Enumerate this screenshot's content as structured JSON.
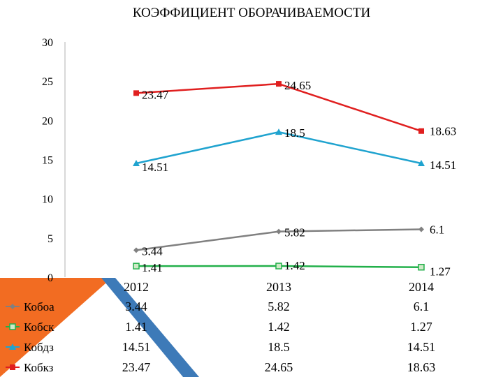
{
  "chart_data": {
    "type": "line",
    "title": "КОЭФФИЦИЕНТ ОБОРАЧИВАЕМОСТИ",
    "categories": [
      "2012",
      "2013",
      "2014"
    ],
    "ylim": [
      0,
      30
    ],
    "yticks": [
      0,
      5,
      10,
      15,
      20,
      25,
      30
    ],
    "grid": false,
    "legend_position": "table-left",
    "series": [
      {
        "name": "Кобоа",
        "values": [
          3.44,
          5.82,
          6.1
        ],
        "labels": [
          "3.44",
          "5.82",
          "6.1"
        ],
        "color": "#808080",
        "marker": "diamond"
      },
      {
        "name": "Кобск",
        "values": [
          1.41,
          1.42,
          1.27
        ],
        "labels": [
          "1.41",
          "1.42",
          "1.27"
        ],
        "color": "#22b04a",
        "marker": "square"
      },
      {
        "name": "Кобдз",
        "values": [
          14.51,
          18.5,
          14.51
        ],
        "labels": [
          "14.51",
          "18.5",
          "14.51"
        ],
        "color": "#1fa3cf",
        "marker": "triangle"
      },
      {
        "name": "Кобкз",
        "values": [
          23.47,
          24.65,
          18.63
        ],
        "labels": [
          "23.47",
          "24.65",
          "18.63"
        ],
        "color": "#e01f1f",
        "marker": "square"
      }
    ]
  },
  "theme": {
    "orange": "#f26c22",
    "blue": "#3d7ab8"
  }
}
